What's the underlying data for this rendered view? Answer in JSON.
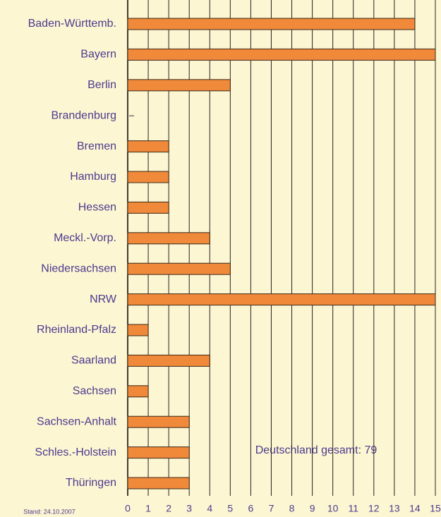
{
  "chart_data": {
    "type": "bar",
    "orientation": "horizontal",
    "categories": [
      "Baden-Württemb.",
      "Bayern",
      "Berlin",
      "Brandenburg",
      "Bremen",
      "Hamburg",
      "Hessen",
      "Meckl.-Vorp.",
      "Niedersachsen",
      "NRW",
      "Rheinland-Pfalz",
      "Saarland",
      "Sachsen",
      "Sachsen-Anhalt",
      "Schles.-Holstein",
      "Thüringen"
    ],
    "values": [
      14,
      15,
      5,
      0,
      2,
      2,
      2,
      4,
      5,
      15,
      1,
      4,
      1,
      3,
      3,
      3
    ],
    "color": "#f0893a",
    "xlim": [
      0,
      15
    ],
    "xticks": [
      0,
      1,
      2,
      3,
      4,
      5,
      6,
      7,
      8,
      9,
      10,
      11,
      12,
      13,
      14,
      15
    ],
    "grid": true,
    "annotations": [
      "Stand: 24.10.2007",
      "Deutschland gesamt: 79"
    ]
  }
}
